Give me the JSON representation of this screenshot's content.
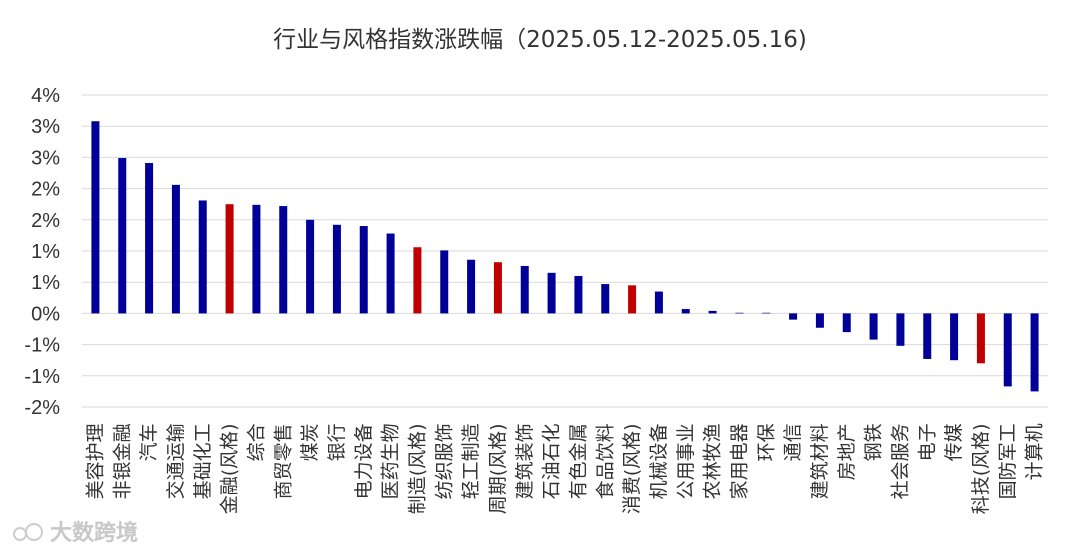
{
  "watermark": "大数跨境",
  "chart_data": {
    "type": "bar",
    "title": "行业与风格指数涨跌幅（2025.05.12-2025.05.16)",
    "xlabel": "",
    "ylabel": "",
    "ylim": [
      -1.5,
      3.5
    ],
    "yticks": [
      {
        "value": 3.5,
        "label": "4%"
      },
      {
        "value": 3.0,
        "label": "3%"
      },
      {
        "value": 2.5,
        "label": "3%"
      },
      {
        "value": 2.0,
        "label": "2%"
      },
      {
        "value": 1.5,
        "label": "2%"
      },
      {
        "value": 1.0,
        "label": "1%"
      },
      {
        "value": 0.5,
        "label": "1%"
      },
      {
        "value": 0.0,
        "label": "0%"
      },
      {
        "value": -0.5,
        "label": "-1%"
      },
      {
        "value": -1.0,
        "label": "-1%"
      },
      {
        "value": -1.5,
        "label": "-2%"
      }
    ],
    "grid": true,
    "colors": {
      "industry": "#000099",
      "style": "#c00000",
      "grid": "#d9d9d9"
    },
    "categories": [
      "美容护理",
      "非银金融",
      "汽车",
      "交通运输",
      "基础化工",
      "金融(风格)",
      "综合",
      "商贸零售",
      "煤炭",
      "银行",
      "电力设备",
      "医药生物",
      "制造(风格)",
      "纺织服饰",
      "轻工制造",
      "周期(风格)",
      "建筑装饰",
      "石油石化",
      "有色金属",
      "食品饮料",
      "消费(风格)",
      "机械设备",
      "公用事业",
      "农林牧渔",
      "家用电器",
      "环保",
      "通信",
      "建筑材料",
      "房地产",
      "钢铁",
      "社会服务",
      "电子",
      "传媒",
      "科技(风格)",
      "国防军工",
      "计算机"
    ],
    "values": [
      3.08,
      2.49,
      2.41,
      2.06,
      1.81,
      1.75,
      1.74,
      1.72,
      1.5,
      1.42,
      1.4,
      1.28,
      1.06,
      1.01,
      0.86,
      0.82,
      0.76,
      0.65,
      0.6,
      0.47,
      0.45,
      0.35,
      0.07,
      0.04,
      0.01,
      0.01,
      -0.1,
      -0.23,
      -0.3,
      -0.42,
      -0.52,
      -0.73,
      -0.75,
      -0.8,
      -1.17,
      -1.25
    ],
    "is_style": [
      false,
      false,
      false,
      false,
      false,
      true,
      false,
      false,
      false,
      false,
      false,
      false,
      true,
      false,
      false,
      true,
      false,
      false,
      false,
      false,
      true,
      false,
      false,
      false,
      false,
      false,
      false,
      false,
      false,
      false,
      false,
      false,
      false,
      true,
      false,
      false
    ]
  }
}
